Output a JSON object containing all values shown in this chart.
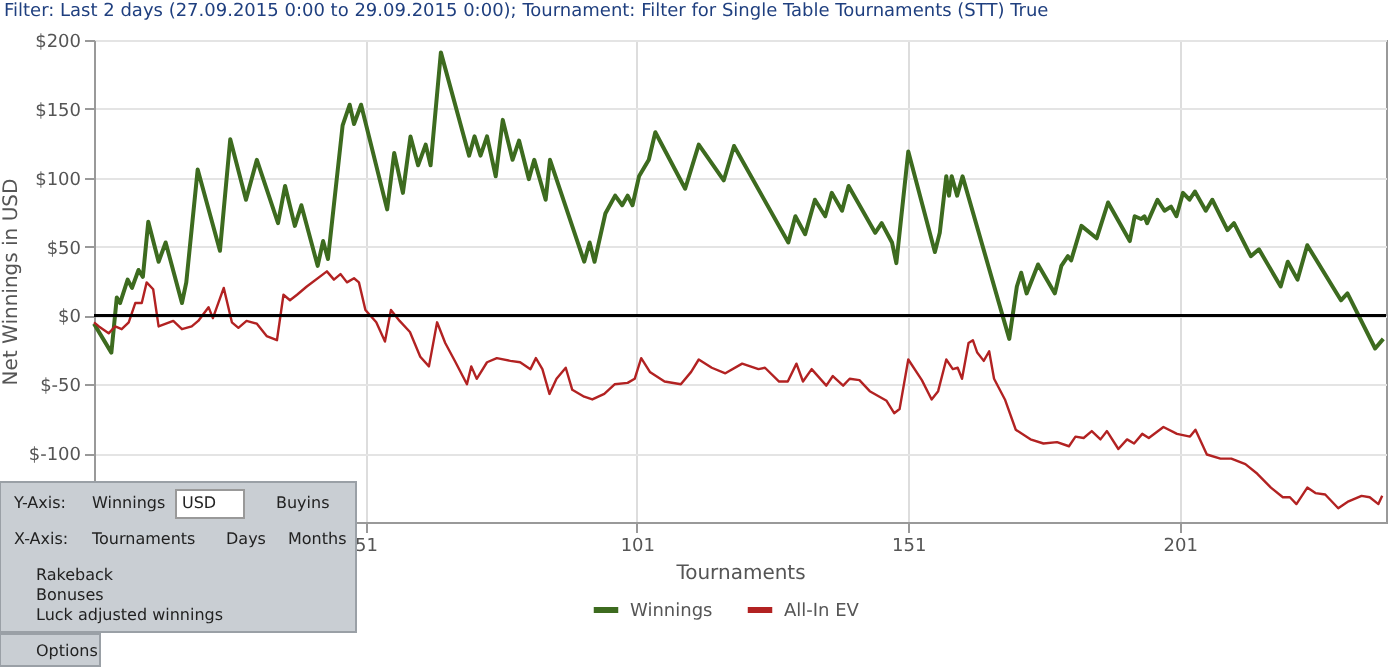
{
  "chart_data": {
    "type": "line",
    "title": "Filter: Last 2 days (27.09.2015 0:00 to 29.09.2015 0:00); Tournament: Filter for Single Table Tournaments (STT) True",
    "xlabel": "Tournaments",
    "ylabel": "Net Winnings in USD",
    "xlim": [
      1,
      239
    ],
    "xticks": [
      51,
      101,
      151,
      201
    ],
    "ylim": [
      -150,
      200
    ],
    "yticks": [
      {
        "value": 200,
        "label": "$200"
      },
      {
        "value": 150,
        "label": "$150"
      },
      {
        "value": 100,
        "label": "$100"
      },
      {
        "value": 50,
        "label": "$50"
      },
      {
        "value": 0,
        "label": "$0"
      },
      {
        "value": -50,
        "label": "$-50"
      },
      {
        "value": -100,
        "label": "$-100"
      }
    ],
    "grid": true,
    "legend": "bottom",
    "marker": "none",
    "line_style": "solid",
    "ref_lines": [
      {
        "axis": "y",
        "value": 0,
        "label": null,
        "color": "#000000"
      }
    ],
    "annotations": [
      "Y-Axis:",
      "Winnings",
      "USD",
      "Buyins",
      "X-Axis:",
      "Tournaments",
      "Days",
      "Months",
      "Rakeback",
      "Bonuses",
      "Luck adjusted winnings",
      "Options"
    ],
    "series": [
      {
        "name": "Winnings",
        "color": "#3d6b1f",
        "x": [
          1,
          4.2,
          5.2,
          5.8,
          7.2,
          8,
          9.2,
          10,
          11,
          12.9,
          14.2,
          17.2,
          18,
          20.1,
          24.2,
          26.1,
          29,
          31,
          34.9,
          36.2,
          38,
          39.2,
          42.2,
          43.2,
          44.1,
          46.8,
          48.1,
          48.9,
          50.2,
          55,
          56.3,
          57.9,
          59.3,
          60.7,
          62.1,
          63,
          64.9,
          70.1,
          71.1,
          72.2,
          73.4,
          75,
          76.3,
          78.1,
          79.3,
          81.1,
          82.1,
          84.2,
          85,
          91.3,
          92.3,
          93.2,
          95.2,
          97,
          98.3,
          99.3,
          100.2,
          101.4,
          103.2,
          104.4,
          109.9,
          112.4,
          117,
          118.9,
          128.9,
          130.2,
          132,
          133.8,
          135.7,
          136.9,
          138.8,
          140,
          144.9,
          146.1,
          148,
          148.8,
          151,
          155.9,
          156.8,
          158,
          158.5,
          159,
          160,
          161,
          169.6,
          171,
          171.8,
          172.8,
          174.9,
          178,
          179.2,
          180.4,
          181,
          182.9,
          185.7,
          187.8,
          191.8,
          192.7,
          193.9,
          194.5,
          195,
          196.9,
          198.2,
          199.4,
          200.4,
          201.6,
          202.8,
          203.8,
          205.8,
          207,
          209.8,
          211,
          214.1,
          215.6,
          219.6,
          220.9,
          222.7,
          224.5,
          230.7,
          231.9,
          237,
          238.5
        ],
        "values": [
          -6,
          -27,
          13,
          9,
          26,
          20,
          33,
          28,
          68,
          39,
          53,
          9,
          24,
          106,
          47,
          128,
          84,
          113,
          67,
          94,
          65,
          80,
          36,
          54,
          41,
          138,
          153,
          139,
          153,
          77,
          118,
          89,
          130,
          109,
          124,
          109,
          191,
          116,
          130,
          116,
          130,
          101,
          142,
          113,
          127,
          99,
          113,
          84,
          113,
          39,
          53,
          39,
          74,
          87,
          80,
          87,
          80,
          101,
          113,
          133,
          92,
          124,
          98,
          123,
          53,
          72,
          59,
          84,
          72,
          89,
          76,
          94,
          60,
          67,
          53,
          38,
          119,
          46,
          60,
          101,
          87,
          101,
          87,
          101,
          -17,
          21,
          31,
          16,
          37,
          16,
          36,
          43,
          40,
          65,
          56,
          82,
          54,
          72,
          70,
          72,
          67,
          84,
          76,
          79,
          72,
          89,
          84,
          90,
          76,
          84,
          62,
          67,
          43,
          48,
          21,
          39,
          26,
          51,
          11,
          16,
          -24,
          -17
        ]
      },
      {
        "name": "All-In EV",
        "color": "#b22222",
        "x": [
          1,
          1.9,
          3.7,
          4.9,
          6.1,
          7.4,
          8.6,
          9.8,
          10.7,
          11.9,
          12.9,
          15.6,
          17.2,
          19,
          20.2,
          22.1,
          22.9,
          24.9,
          26.4,
          27.6,
          29.1,
          31,
          32.8,
          34.7,
          35.9,
          37.1,
          38.4,
          40.2,
          43.9,
          45.2,
          46.4,
          47.6,
          48.9,
          49.8,
          51,
          53,
          54.6,
          55.7,
          57.3,
          59.2,
          61.1,
          62.7,
          64.2,
          65.7,
          67.6,
          69.7,
          70.5,
          71.5,
          73.4,
          75.2,
          77.7,
          79.5,
          81.4,
          82.4,
          83.6,
          84.9,
          86.2,
          87.9,
          89.1,
          91.3,
          92.8,
          95,
          96.9,
          99.3,
          100.6,
          101.8,
          103.4,
          106.1,
          109.1,
          111,
          112.4,
          114.8,
          117.3,
          120.4,
          123.4,
          124.6,
          127.2,
          128.8,
          130.4,
          131.6,
          133.2,
          135.9,
          137.1,
          139,
          140.2,
          142,
          143.9,
          147,
          148.4,
          149.4,
          151,
          153.5,
          155.3,
          156.5,
          158,
          159.2,
          160.1,
          160.9,
          162.1,
          162.9,
          163.7,
          164.9,
          165.9,
          166.8,
          168.8,
          170.8,
          173.5,
          175.9,
          178.4,
          180.6,
          181.8,
          183.3,
          184.8,
          186.4,
          187.6,
          189.7,
          191.3,
          192.6,
          194.1,
          195.3,
          198,
          200.5,
          202.9,
          203.9,
          206,
          208.5,
          210.5,
          213.1,
          215.3,
          217.8,
          220,
          221.3,
          222.5,
          224.5,
          226,
          227.8,
          230.2,
          232.1,
          234.5,
          236,
          237.6,
          238.3
        ],
        "values": [
          -5,
          -8,
          -13,
          -8,
          -10,
          -5,
          9,
          9,
          24,
          19,
          -8,
          -4,
          -10,
          -8,
          -4,
          6,
          -2,
          20,
          -5,
          -9,
          -4,
          -6,
          -15,
          -18,
          15,
          11,
          15,
          21,
          32,
          26,
          30,
          24,
          27,
          24,
          4,
          -5,
          -19,
          4,
          -4,
          -12,
          -30,
          -37,
          -5,
          -20,
          -34,
          -50,
          -37,
          -46,
          -34,
          -31,
          -33,
          -34,
          -39,
          -31,
          -39,
          -57,
          -46,
          -38,
          -54,
          -59,
          -61,
          -57,
          -50,
          -49,
          -46,
          -31,
          -41,
          -48,
          -50,
          -41,
          -32,
          -38,
          -42,
          -35,
          -39,
          -38,
          -48,
          -48,
          -35,
          -48,
          -39,
          -51,
          -44,
          -51,
          -46,
          -47,
          -55,
          -62,
          -71,
          -68,
          -32,
          -47,
          -61,
          -55,
          -32,
          -39,
          -38,
          -46,
          -20,
          -18,
          -27,
          -33,
          -26,
          -46,
          -61,
          -83,
          -90,
          -93,
          -92,
          -95,
          -88,
          -89,
          -84,
          -90,
          -84,
          -97,
          -90,
          -93,
          -86,
          -89,
          -81,
          -86,
          -88,
          -83,
          -101,
          -104,
          -104,
          -108,
          -115,
          -125,
          -132,
          -132,
          -137,
          -125,
          -129,
          -130,
          -140,
          -135,
          -131,
          -132,
          -137,
          -131
        ]
      }
    ]
  }
}
